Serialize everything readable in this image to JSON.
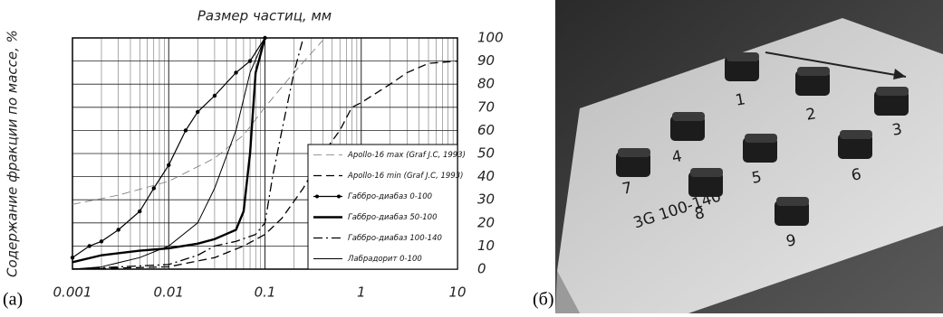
{
  "chart_data": {
    "type": "line",
    "title": "Размер частиц, мм",
    "y_label": "Содержание фракции по массе, %",
    "xscale": "log",
    "xlim": [
      0.001,
      10
    ],
    "xticks": [
      0.001,
      0.01,
      0.1,
      1,
      10
    ],
    "ylim": [
      0,
      100
    ],
    "yticks": [
      0,
      10,
      20,
      30,
      40,
      50,
      60,
      70,
      80,
      90,
      100
    ],
    "y_axis_side": "right",
    "grid": true,
    "legend": "lower right",
    "series": [
      {
        "name": "Apollo-16 max (Graf J.C, 1993)",
        "color": "#777777",
        "line_style": "dashed",
        "line_width": 0.8,
        "x": [
          0.001,
          0.003,
          0.01,
          0.03,
          0.06,
          0.1,
          0.2,
          0.4
        ],
        "y": [
          28,
          32,
          38,
          48,
          58,
          70,
          85,
          99
        ]
      },
      {
        "name": "Apollo-16 min (Graf J.C, 1993)",
        "color": "#000000",
        "line_style": "dashed",
        "line_width": 1.3,
        "x": [
          0.001,
          0.01,
          0.03,
          0.06,
          0.1,
          0.15,
          0.25,
          0.4,
          0.6,
          0.8,
          1,
          2,
          3,
          5,
          10
        ],
        "y": [
          0,
          1,
          5,
          10,
          15,
          22,
          35,
          50,
          60,
          70,
          72,
          80,
          85,
          89,
          90
        ]
      },
      {
        "name": "Габбро-диабаз 0-100",
        "color": "#000000",
        "line_style": "solid",
        "line_width": 1.2,
        "marker": "circle",
        "x": [
          0.001,
          0.0015,
          0.002,
          0.003,
          0.005,
          0.007,
          0.01,
          0.015,
          0.02,
          0.03,
          0.05,
          0.07,
          0.1
        ],
        "y": [
          5,
          10,
          12,
          17,
          25,
          35,
          45,
          60,
          68,
          75,
          85,
          90,
          100
        ]
      },
      {
        "name": "Габбро-диабаз 50-100",
        "color": "#000000",
        "line_style": "solid",
        "line_width": 2.4,
        "x": [
          0.001,
          0.002,
          0.005,
          0.01,
          0.02,
          0.03,
          0.05,
          0.06,
          0.07,
          0.08,
          0.1
        ],
        "y": [
          3,
          6,
          8,
          9,
          11,
          13,
          17,
          25,
          50,
          85,
          100
        ]
      },
      {
        "name": "Габбро-диабаз 100-140",
        "color": "#000000",
        "line_style": "dash-dot",
        "line_width": 1.3,
        "x": [
          0.001,
          0.01,
          0.02,
          0.03,
          0.05,
          0.08,
          0.1,
          0.12,
          0.15,
          0.2,
          0.25
        ],
        "y": [
          0,
          2,
          6,
          10,
          12,
          15,
          20,
          40,
          60,
          85,
          100
        ]
      },
      {
        "name": "Лабрадорит 0-100",
        "color": "#000000",
        "line_style": "solid",
        "line_width": 1.0,
        "x": [
          0.001,
          0.002,
          0.005,
          0.01,
          0.02,
          0.03,
          0.05,
          0.07,
          0.1
        ],
        "y": [
          0,
          1,
          5,
          10,
          20,
          35,
          60,
          85,
          100
        ]
      }
    ]
  },
  "panel_labels": [
    "(a)",
    "(б)"
  ],
  "photo": {
    "labels": [
      "1",
      "2",
      "3",
      "4",
      "5",
      "6",
      "7",
      "8",
      "9",
      "3G 100-140"
    ]
  }
}
